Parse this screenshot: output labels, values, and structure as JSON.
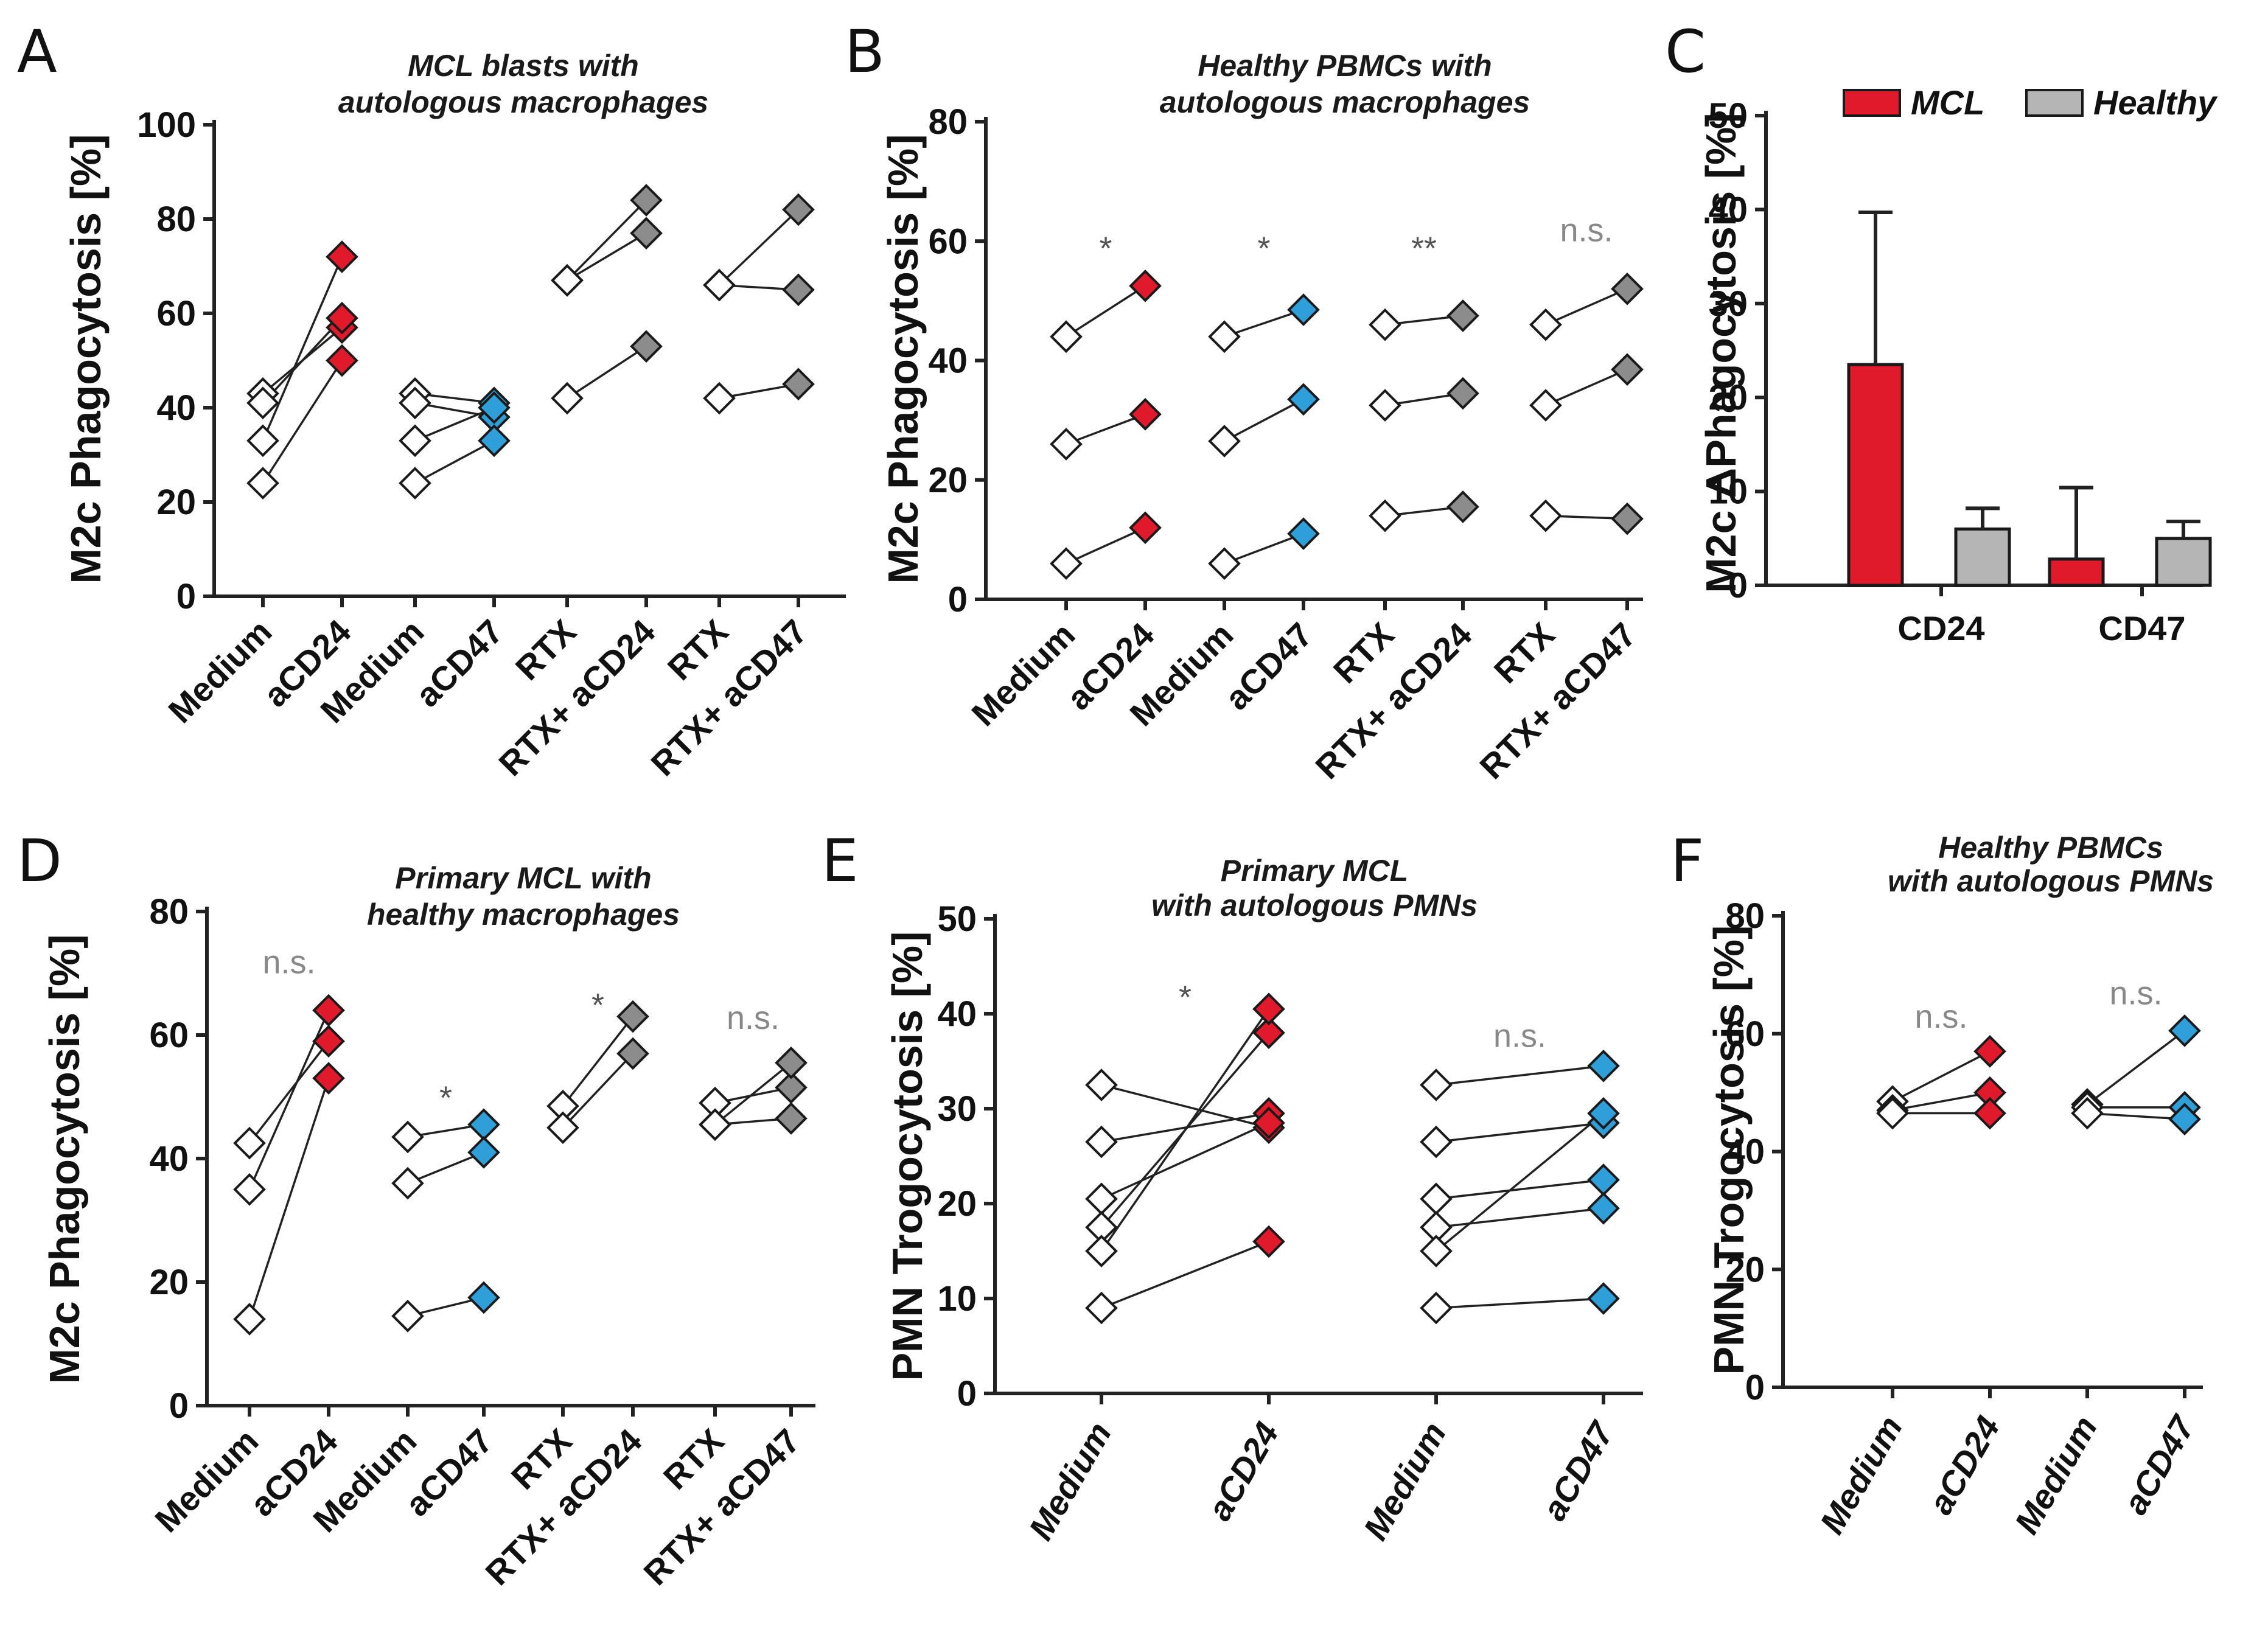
{
  "colors": {
    "white": "#ffffff",
    "red": "#e0192b",
    "blue": "#2e9fd8",
    "gray": "#8c8c8c",
    "healthy_bar": "#b5b5b5",
    "sig_dark": "#555555",
    "sig_light": "#888888"
  },
  "chart_data": [
    {
      "id": "A",
      "type": "paired-scatter",
      "label": "A",
      "title": [
        "MCL blasts with",
        "autologous macrophages"
      ],
      "ylabel": "M2c Phagocytosis [%]",
      "ylim": [
        0,
        100
      ],
      "yticks": [
        0,
        20,
        40,
        60,
        80,
        100
      ],
      "xticks": [
        "Medium",
        "aCD24",
        "Medium",
        "aCD47",
        "RTX",
        "RTX+ aCD24",
        "RTX",
        "RTX+ aCD47"
      ],
      "italic_xticks": false,
      "groups": [
        {
          "x": [
            0,
            1
          ],
          "color": "red",
          "sig": "",
          "pairs": [
            [
              43,
              57
            ],
            [
              41,
              59
            ],
            [
              33,
              72
            ],
            [
              24,
              50
            ]
          ]
        },
        {
          "x": [
            2,
            3
          ],
          "color": "blue",
          "sig": "",
          "pairs": [
            [
              43,
              41
            ],
            [
              41,
              38
            ],
            [
              33,
              40
            ],
            [
              24,
              33
            ]
          ]
        },
        {
          "x": [
            4,
            5
          ],
          "color": "gray",
          "sig": "",
          "pairs": [
            [
              67,
              84
            ],
            [
              67,
              77
            ],
            [
              42,
              53
            ]
          ]
        },
        {
          "x": [
            6,
            7
          ],
          "color": "gray",
          "sig": "",
          "pairs": [
            [
              66,
              82
            ],
            [
              66,
              65
            ],
            [
              42,
              45
            ]
          ]
        }
      ]
    },
    {
      "id": "B",
      "type": "paired-scatter",
      "label": "B",
      "title": [
        "Healthy PBMCs with",
        "autologous macrophages"
      ],
      "ylabel": "M2c Phagocytosis [%]",
      "ylim": [
        0,
        80
      ],
      "yticks": [
        0,
        20,
        40,
        60,
        80
      ],
      "xticks": [
        "Medium",
        "aCD24",
        "Medium",
        "aCD47",
        "RTX",
        "RTX+ aCD24",
        "RTX",
        "RTX+ aCD47"
      ],
      "italic_xticks": false,
      "groups": [
        {
          "x": [
            0,
            1
          ],
          "color": "red",
          "sig": "*",
          "sig_y": 60,
          "pairs": [
            [
              44,
              52.5
            ],
            [
              26,
              31
            ],
            [
              6,
              12
            ]
          ]
        },
        {
          "x": [
            2,
            3
          ],
          "color": "blue",
          "sig": "*",
          "sig_y": 60,
          "pairs": [
            [
              44,
              48.5
            ],
            [
              26.5,
              33.5
            ],
            [
              6,
              11
            ]
          ]
        },
        {
          "x": [
            4,
            5
          ],
          "color": "gray",
          "sig": "**",
          "sig_y": 60,
          "pairs": [
            [
              46,
              47.5
            ],
            [
              32.5,
              34.5
            ],
            [
              14,
              15.5
            ]
          ]
        },
        {
          "x": [
            6,
            7
          ],
          "color": "gray",
          "sig": "n.s.",
          "sig_y": 60,
          "pairs": [
            [
              46,
              52
            ],
            [
              32.5,
              38.5
            ],
            [
              14,
              13.5
            ]
          ]
        }
      ]
    },
    {
      "id": "C",
      "type": "bar",
      "label": "C",
      "ylabel": "M2c ΔPhagocytosis [%]",
      "ylim": [
        0,
        50
      ],
      "yticks": [
        0,
        10,
        20,
        30,
        40,
        50
      ],
      "categories": [
        "CD24",
        "CD47"
      ],
      "legend_position": "top",
      "series": [
        {
          "name": "MCL",
          "color": "red",
          "values": [
            23.5,
            2.8
          ],
          "errors": [
            16.2,
            7.6
          ]
        },
        {
          "name": "Healthy",
          "color": "healthy_bar",
          "values": [
            6,
            5
          ],
          "errors": [
            2.2,
            1.8
          ]
        }
      ]
    },
    {
      "id": "D",
      "type": "paired-scatter",
      "label": "D",
      "title": [
        "Primary MCL with",
        "healthy macrophages"
      ],
      "ylabel": "M2c Phagocytosis [%]",
      "ylim": [
        0,
        80
      ],
      "yticks": [
        0,
        20,
        40,
        60,
        80
      ],
      "xticks": [
        "Medium",
        "aCD24",
        "Medium",
        "aCD47",
        "RTX",
        "RTX+ aCD24",
        "RTX",
        "RTX+ aCD47"
      ],
      "italic_xticks": false,
      "groups": [
        {
          "x": [
            0,
            1
          ],
          "color": "red",
          "sig": "n.s.",
          "sig_y": 70,
          "pairs": [
            [
              42.5,
              59
            ],
            [
              35,
              64
            ],
            [
              14,
              53
            ]
          ]
        },
        {
          "x": [
            2,
            3
          ],
          "color": "blue",
          "sig": "*",
          "sig_y": 51,
          "pairs": [
            [
              43.5,
              45.5
            ],
            [
              36,
              41
            ],
            [
              14.5,
              17.5
            ]
          ]
        },
        {
          "x": [
            4,
            5
          ],
          "color": "gray",
          "sig": "*",
          "sig_y": 66,
          "pairs": [
            [
              48.5,
              63
            ],
            [
              45,
              57
            ]
          ]
        },
        {
          "x": [
            6,
            7
          ],
          "color": "gray",
          "sig": "n.s.",
          "sig_y": 61,
          "pairs": [
            [
              49,
              51.5
            ],
            [
              45.5,
              55.5
            ],
            [
              45.5,
              46.5
            ]
          ]
        }
      ]
    },
    {
      "id": "E",
      "type": "paired-scatter",
      "label": "E",
      "title": [
        "Primary MCL",
        "with autologous PMNs"
      ],
      "ylabel": "PMN Trogocytosis [%]",
      "ylim": [
        0,
        50
      ],
      "yticks": [
        0,
        10,
        20,
        30,
        40,
        50
      ],
      "xticks": [
        "Medium",
        "aCD24",
        "Medium",
        "aCD47"
      ],
      "italic_xticks": true,
      "groups": [
        {
          "x": [
            0,
            1
          ],
          "color": "red",
          "sig": "*",
          "sig_y": 42.5,
          "pairs": [
            [
              32.5,
              28
            ],
            [
              26.5,
              29.5
            ],
            [
              20.5,
              28.5
            ],
            [
              17.5,
              38
            ],
            [
              15,
              40.5
            ],
            [
              9,
              16
            ]
          ]
        },
        {
          "x": [
            2,
            3
          ],
          "color": "blue",
          "sig": "n.s.",
          "sig_y": 36.5,
          "pairs": [
            [
              32.5,
              34.5
            ],
            [
              26.5,
              28.5
            ],
            [
              20.5,
              22.5
            ],
            [
              17.5,
              19.5
            ],
            [
              15,
              29.5
            ],
            [
              9,
              10
            ]
          ]
        }
      ]
    },
    {
      "id": "F",
      "type": "paired-scatter",
      "label": "F",
      "title": [
        "Healthy PBMCs",
        "with autologous PMNs"
      ],
      "ylabel": "PMN Trogocytosis [%]",
      "ylim": [
        0,
        80
      ],
      "yticks": [
        0,
        20,
        40,
        60,
        80
      ],
      "xticks": [
        "Medium",
        "aCD24",
        "Medium",
        "aCD47"
      ],
      "italic_xticks": true,
      "groups": [
        {
          "x": [
            0,
            1
          ],
          "color": "red",
          "sig": "n.s.",
          "sig_y": 61,
          "pairs": [
            [
              48.5,
              57
            ],
            [
              47,
              50
            ],
            [
              46.5,
              46.5
            ]
          ]
        },
        {
          "x": [
            2,
            3
          ],
          "color": "blue",
          "sig": "n.s.",
          "sig_y": 65,
          "pairs": [
            [
              48,
              60.5
            ],
            [
              47.5,
              47.5
            ],
            [
              46.5,
              45.5
            ]
          ]
        }
      ]
    }
  ]
}
